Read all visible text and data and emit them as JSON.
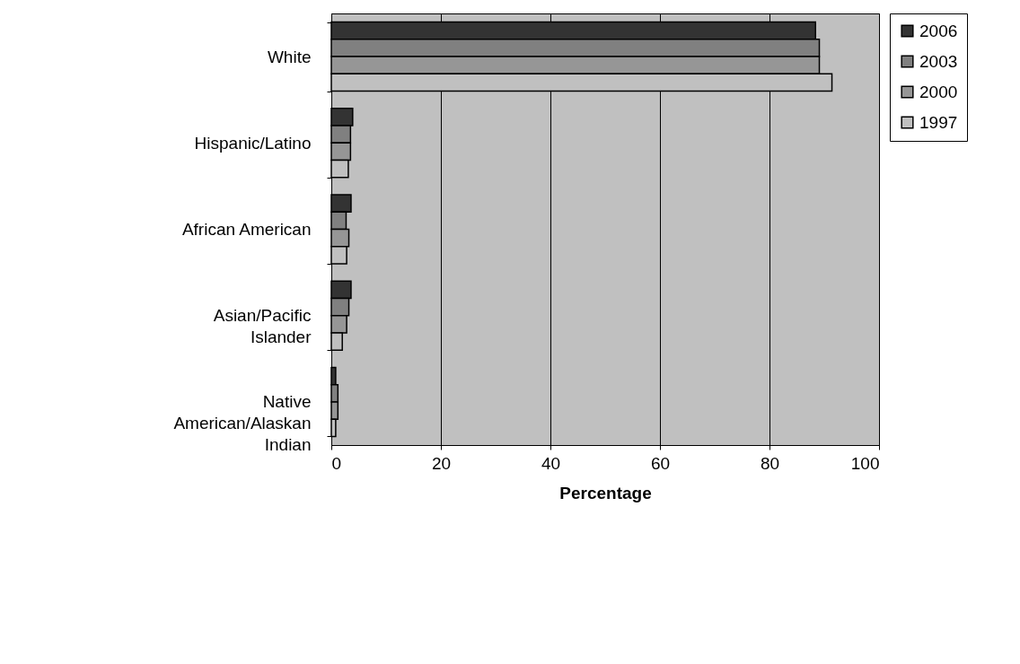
{
  "chart_data": {
    "type": "bar",
    "orientation": "horizontal",
    "xlabel": "Percentage",
    "categories": [
      "White",
      "Hispanic/Latino",
      "African American",
      "Asian/Pacific Islander",
      "Native American/Alaskan Indian"
    ],
    "series": [
      {
        "name": "2006",
        "color": "#333333",
        "values": [
          88.4,
          3.9,
          3.6,
          3.6,
          0.8
        ]
      },
      {
        "name": "2003",
        "color": "#808080",
        "values": [
          89.1,
          3.5,
          2.7,
          3.2,
          1.2
        ]
      },
      {
        "name": "2000",
        "color": "#969696",
        "values": [
          89.1,
          3.5,
          3.2,
          2.8,
          1.2
        ]
      },
      {
        "name": "1997",
        "color": "#c0c0c0",
        "values": [
          91.4,
          3.1,
          2.8,
          2.0,
          0.8
        ]
      }
    ],
    "xlim": [
      0,
      100
    ],
    "xticks": [
      0,
      20,
      40,
      60,
      80,
      100
    ],
    "grid": "x",
    "legend": "right"
  }
}
